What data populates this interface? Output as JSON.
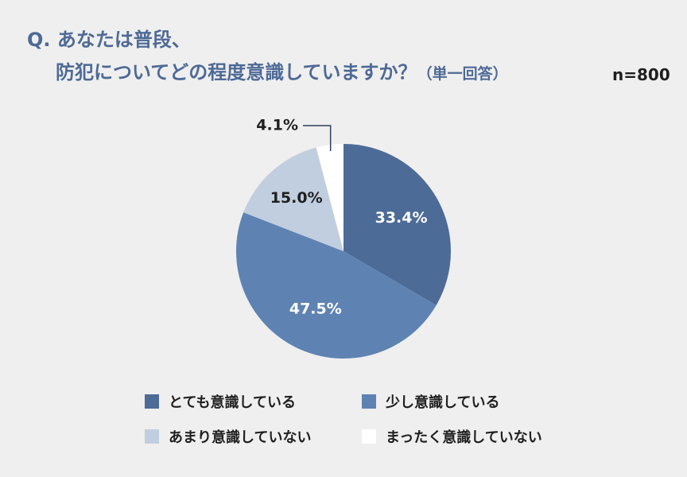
{
  "title": {
    "line1": "Q. あなたは普段、",
    "line2": "防犯についてどの程度意識していますか？",
    "note": "（単一回答）"
  },
  "sample_size": "n=800",
  "chart_data": {
    "type": "pie",
    "categories": [
      "とても意識している",
      "少し意識している",
      "あまり意識していない",
      "まったく意識していない"
    ],
    "values": [
      33.4,
      47.5,
      15.0,
      4.1
    ],
    "value_labels": [
      "33.4%",
      "47.5%",
      "15.0%",
      "4.1%"
    ],
    "colors": [
      "#4d6b97",
      "#5e83b3",
      "#c1cee0",
      "#ffffff"
    ],
    "legend_placement": "bottom"
  }
}
